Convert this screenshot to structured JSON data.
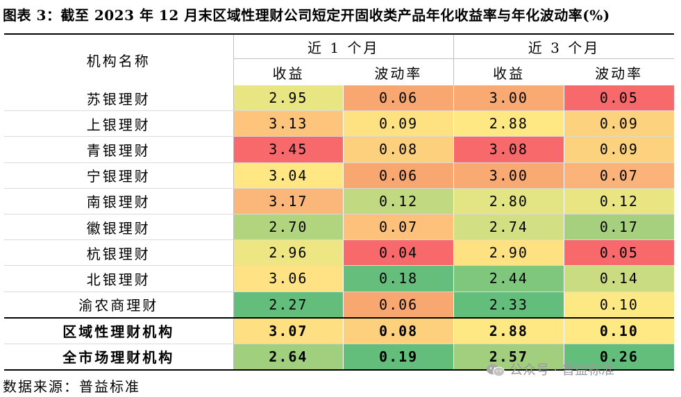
{
  "title": "图表 3：截至 2023 年 12 月末区域性理财公司短定开固收类产品年化收益率与年化波动率(%)",
  "header": {
    "name_col": "机构名称",
    "groups": [
      "近 1 个月",
      "近 3 个月"
    ],
    "subcols": [
      "收益",
      "波动率",
      "收益",
      "波动率"
    ]
  },
  "rows": [
    {
      "name": "苏银理财",
      "values": [
        "2.95",
        "0.06",
        "3.00",
        "0.05"
      ],
      "colors": [
        "#e8e583",
        "#f8a771",
        "#f9aa73",
        "#f8696b"
      ]
    },
    {
      "name": "上银理财",
      "values": [
        "3.13",
        "0.09",
        "2.88",
        "0.09"
      ],
      "colors": [
        "#fcc57b",
        "#fee282",
        "#fee883",
        "#fdd27f"
      ]
    },
    {
      "name": "青银理财",
      "values": [
        "3.45",
        "0.08",
        "3.08",
        "0.09"
      ],
      "colors": [
        "#f8696b",
        "#fdd07e",
        "#f8696b",
        "#fdd27f"
      ]
    },
    {
      "name": "宁银理财",
      "values": [
        "3.04",
        "0.06",
        "3.00",
        "0.07"
      ],
      "colors": [
        "#ffe884",
        "#f8a771",
        "#f9aa73",
        "#fbb379"
      ]
    },
    {
      "name": "南银理财",
      "values": [
        "3.17",
        "0.12",
        "2.80",
        "0.12"
      ],
      "colors": [
        "#fbb679",
        "#c1d980",
        "#e3e483",
        "#e9e583"
      ]
    },
    {
      "name": "徽银理财",
      "values": [
        "2.70",
        "0.07",
        "2.74",
        "0.17"
      ],
      "colors": [
        "#b1d47f",
        "#fdc17c",
        "#d2df82",
        "#a6d07e"
      ]
    },
    {
      "name": "杭银理财",
      "values": [
        "2.96",
        "0.04",
        "2.90",
        "0.05"
      ],
      "colors": [
        "#ede683",
        "#f8696b",
        "#fee282",
        "#f8696b"
      ]
    },
    {
      "name": "北银理财",
      "values": [
        "3.06",
        "0.18",
        "2.44",
        "0.14"
      ],
      "colors": [
        "#fee283",
        "#65be7b",
        "#7fc77d",
        "#cadc81"
      ]
    },
    {
      "name": "渝农商理财",
      "values": [
        "2.27",
        "0.06",
        "2.33",
        "0.10"
      ],
      "colors": [
        "#63be7b",
        "#f8a771",
        "#63be7b",
        "#fce983"
      ]
    }
  ],
  "aggregates": [
    {
      "name": "区域性理财机构",
      "values": [
        "3.07",
        "0.08",
        "2.88",
        "0.10"
      ],
      "colors": [
        "#fee082",
        "#fdd07e",
        "#fee883",
        "#ffe984"
      ]
    },
    {
      "name": "全市场理财机构",
      "values": [
        "2.64",
        "0.19",
        "2.57",
        "0.26"
      ],
      "colors": [
        "#a0cf7e",
        "#63be7b",
        "#a1cf7e",
        "#63be7b"
      ]
    }
  ],
  "source": "数据来源：普益标准",
  "watermark": {
    "icon": "wechat-icon",
    "text": "公众号 · 普益标准"
  }
}
